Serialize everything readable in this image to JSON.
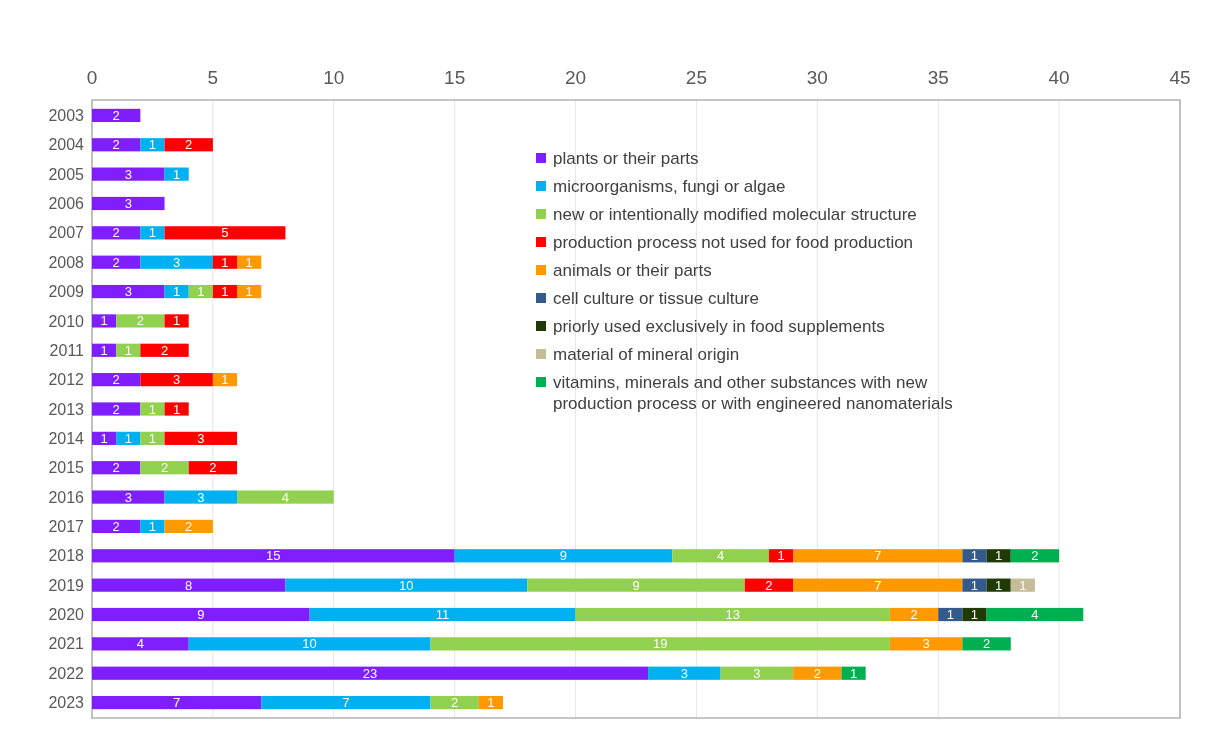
{
  "chart_data": {
    "type": "bar",
    "orientation": "horizontal",
    "stacked": true,
    "data_labels": true,
    "grid": "x",
    "legend": "top right",
    "marker": "square",
    "categories": [
      "2003",
      "2004",
      "2005",
      "2006",
      "2007",
      "2008",
      "2009",
      "2010",
      "2011",
      "2012",
      "2013",
      "2014",
      "2015",
      "2016",
      "2017",
      "2018",
      "2019",
      "2020",
      "2021",
      "2022",
      "2023"
    ],
    "xlim": [
      0,
      45
    ],
    "xticks": [
      0,
      5,
      10,
      15,
      20,
      25,
      30,
      35,
      40,
      45
    ],
    "series": [
      {
        "name": "plants or their parts",
        "color": "#7f1fff",
        "values": [
          2,
          2,
          3,
          3,
          2,
          2,
          3,
          1,
          1,
          2,
          2,
          1,
          2,
          3,
          2,
          15,
          8,
          9,
          4,
          23,
          7
        ]
      },
      {
        "name": "microorganisms, fungi or algae",
        "color": "#00b0f0",
        "values": [
          null,
          1,
          1,
          null,
          1,
          3,
          1,
          null,
          null,
          null,
          null,
          1,
          null,
          3,
          1,
          9,
          10,
          11,
          10,
          3,
          7
        ]
      },
      {
        "name": "new or intentionally modified molecular structure",
        "color": "#92d050",
        "values": [
          null,
          null,
          null,
          null,
          null,
          null,
          1,
          2,
          1,
          null,
          1,
          1,
          2,
          4,
          null,
          4,
          9,
          13,
          19,
          3,
          2
        ]
      },
      {
        "name": "production process not used for food production",
        "color": "#ff0000",
        "values": [
          null,
          2,
          null,
          null,
          5,
          1,
          1,
          1,
          2,
          3,
          1,
          3,
          2,
          null,
          null,
          1,
          2,
          null,
          null,
          null,
          null
        ]
      },
      {
        "name": "animals or their parts",
        "color": "#ff9900",
        "values": [
          null,
          null,
          null,
          null,
          null,
          1,
          1,
          null,
          null,
          1,
          null,
          null,
          null,
          null,
          2,
          7,
          7,
          2,
          3,
          2,
          1
        ]
      },
      {
        "name": "cell culture or tissue culture",
        "color": "#335a8a",
        "values": [
          null,
          null,
          null,
          null,
          null,
          null,
          null,
          null,
          null,
          null,
          null,
          null,
          null,
          null,
          null,
          1,
          1,
          1,
          null,
          null,
          null
        ]
      },
      {
        "name": "priorly used exclusively in food supplements",
        "color": "#203a05",
        "values": [
          null,
          null,
          null,
          null,
          null,
          null,
          null,
          null,
          null,
          null,
          null,
          null,
          null,
          null,
          null,
          1,
          1,
          1,
          null,
          null,
          null
        ]
      },
      {
        "name": "material of mineral origin",
        "color": "#c4bd97",
        "values": [
          null,
          null,
          null,
          null,
          null,
          null,
          null,
          null,
          null,
          null,
          null,
          null,
          null,
          null,
          null,
          null,
          1,
          null,
          null,
          null,
          null
        ]
      },
      {
        "name": "vitamins, minerals and other substances with new production process or with engineered nanomaterials",
        "color": "#00b050",
        "values": [
          null,
          null,
          null,
          null,
          null,
          null,
          null,
          null,
          null,
          null,
          null,
          null,
          null,
          null,
          null,
          2,
          null,
          4,
          2,
          1,
          null
        ]
      }
    ]
  }
}
